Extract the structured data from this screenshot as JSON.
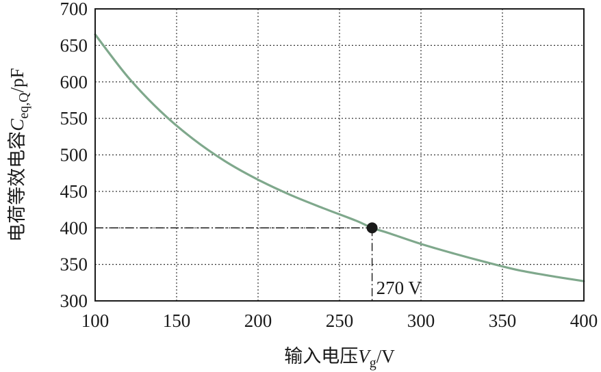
{
  "chart_data": {
    "type": "line",
    "title": "",
    "xlabel": {
      "main": "输入电压",
      "symbol": "V",
      "subscript": "g",
      "unit": "/V"
    },
    "ylabel": {
      "main": "电荷等效电容",
      "symbol": "C",
      "subscript": "eq,Q",
      "unit": "/pF"
    },
    "xlim": [
      100,
      400
    ],
    "ylim": [
      300,
      700
    ],
    "xticks": [
      100,
      150,
      200,
      250,
      300,
      350,
      400
    ],
    "yticks": [
      300,
      350,
      400,
      450,
      500,
      550,
      600,
      650,
      700
    ],
    "grid": true,
    "series": [
      {
        "color": "#7fa88c",
        "x": [
          100,
          120,
          140,
          160,
          180,
          200,
          220,
          240,
          260,
          270,
          280,
          300,
          320,
          340,
          360,
          380,
          400
        ],
        "y": [
          665,
          607,
          560,
          522,
          491,
          466,
          445,
          427,
          410,
          400,
          393,
          378,
          365,
          353,
          342,
          334,
          327
        ]
      }
    ],
    "annotation": {
      "x": 270,
      "y": 400,
      "label": "270 V"
    }
  }
}
